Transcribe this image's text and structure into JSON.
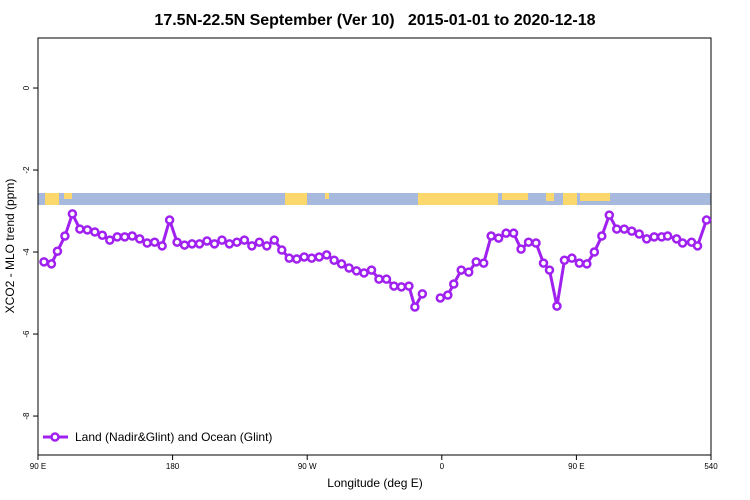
{
  "chart_data": {
    "type": "line",
    "title": "17.5N-22.5N September (Ver 10)   2015-01-01 to 2020-12-18",
    "x_label": "Longitude (deg E)",
    "y_label": "XCO2 - MLO trend (ppm)",
    "xlim": [
      90,
      540
    ],
    "xticks": [
      {
        "value": 90,
        "label": "90 E"
      },
      180,
      {
        "value": 270,
        "label": "90 W"
      },
      {
        "value": 360,
        "label": "0"
      },
      {
        "value": 450,
        "label": "90 E"
      },
      540
    ],
    "ylim": [
      -8.95,
      1.22
    ],
    "yticks": [
      0,
      -2,
      -4,
      -6,
      -8
    ],
    "legend": "bottom-left",
    "x": [
      94,
      99,
      103,
      108,
      113,
      118,
      123,
      128,
      133,
      138,
      143,
      148,
      153,
      158,
      163,
      168,
      173,
      178,
      183,
      188,
      193,
      198,
      203,
      208,
      213,
      218,
      223,
      228,
      233,
      238,
      243,
      248,
      253,
      258,
      263,
      268,
      273,
      278,
      283,
      288,
      293,
      298,
      303,
      308,
      313,
      318,
      323,
      328,
      333,
      338,
      342,
      347,
      352,
      359,
      364,
      368,
      373,
      378,
      383,
      388,
      393,
      398,
      403,
      408,
      413,
      418,
      423,
      428,
      432,
      437,
      442,
      447,
      452,
      457,
      462,
      467,
      472,
      477,
      482,
      487,
      492,
      497,
      502,
      507,
      511,
      517,
      521,
      527,
      531,
      537
    ],
    "series": [
      {
        "name": "Land (Nadir&Glint) and Ocean (Glint)",
        "color": "#a020f0",
        "values": [
          -4.24,
          -4.29,
          -3.98,
          -3.61,
          -3.07,
          -3.44,
          -3.46,
          -3.51,
          -3.59,
          -3.71,
          -3.63,
          -3.63,
          -3.61,
          -3.68,
          -3.78,
          -3.76,
          -3.85,
          -3.22,
          -3.76,
          -3.83,
          -3.8,
          -3.8,
          -3.73,
          -3.8,
          -3.71,
          -3.8,
          -3.76,
          -3.71,
          -3.85,
          -3.76,
          -3.85,
          -3.71,
          -3.95,
          -4.15,
          -4.17,
          -4.12,
          -4.15,
          -4.12,
          -4.07,
          -4.2,
          -4.29,
          -4.39,
          -4.46,
          -4.51,
          -4.44,
          -4.66,
          -4.66,
          -4.83,
          -4.85,
          -4.83,
          -5.34,
          -5.02,
          null,
          -5.12,
          -5.05,
          -4.78,
          -4.44,
          -4.49,
          -4.24,
          -4.27,
          -3.61,
          -3.66,
          -3.54,
          -3.54,
          -3.93,
          -3.76,
          -3.78,
          -4.27,
          -4.44,
          -5.32,
          -4.2,
          -4.15,
          -4.27,
          -4.29,
          -4.0,
          -3.61,
          -3.1,
          -3.44,
          -3.44,
          -3.49,
          -3.56,
          -3.68,
          -3.63,
          -3.63,
          -3.61,
          -3.68,
          -3.78,
          -3.76,
          -3.85,
          -3.22
        ]
      }
    ]
  }
}
